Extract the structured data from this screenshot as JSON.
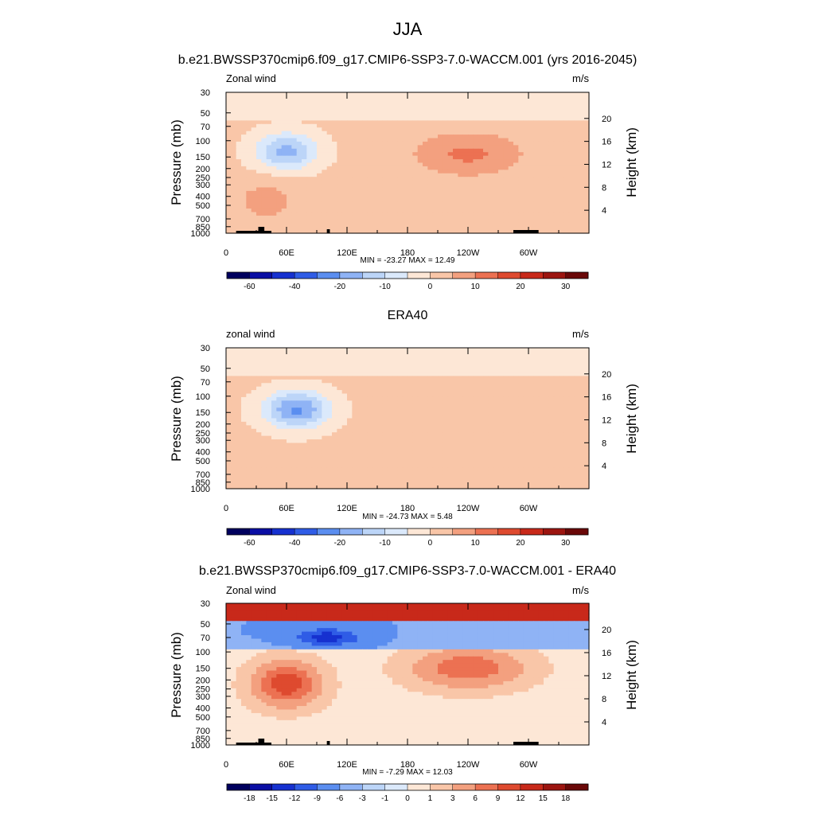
{
  "figure": {
    "title": "JJA",
    "colors": {
      "model_scale": [
        "#00005e",
        "#0a0ea4",
        "#1631d0",
        "#2f5ce6",
        "#5b8ef0",
        "#8fb3f5",
        "#bcd5f8",
        "#dbe9fb",
        "#fde7d6",
        "#f9c6a8",
        "#f3a07f",
        "#ec7152",
        "#de4a2f",
        "#c8291a",
        "#9c1510",
        "#6a0808"
      ],
      "diff_scale": [
        "#00005e",
        "#0a0ea4",
        "#1631d0",
        "#2f5ce6",
        "#5b8ef0",
        "#8fb3f5",
        "#bcd5f8",
        "#dbe9fb",
        "#fde7d6",
        "#f9c6a8",
        "#f3a07f",
        "#ec7152",
        "#de4a2f",
        "#c8291a",
        "#9c1510",
        "#6a0808"
      ]
    }
  },
  "chart_data": [
    {
      "type": "heatmap",
      "title": "b.e21.BWSSP370cmip6.f09_g17.CMIP6-SSP3-7.0-WACCM.001 (yrs 2016-2045)",
      "left_label": "Zonal wind",
      "right_label": "m/s",
      "ylabel": "Pressure (mb)",
      "y2label": "Height (km)",
      "yticks": [
        "30",
        "50",
        "70",
        "100",
        "150",
        "200",
        "250",
        "300",
        "400",
        "500",
        "700",
        "850",
        "1000"
      ],
      "ytick_values": [
        30,
        50,
        70,
        100,
        150,
        200,
        250,
        300,
        400,
        500,
        700,
        850,
        1000
      ],
      "y2ticks": [
        "20",
        "16",
        "12",
        "8",
        "4"
      ],
      "y2tick_values": [
        20,
        16,
        12,
        8,
        4
      ],
      "xticks": [
        "0",
        "60E",
        "120E",
        "180",
        "120W",
        "60W"
      ],
      "xtick_values": [
        0,
        60,
        120,
        180,
        240,
        300
      ],
      "xlim": [
        0,
        360
      ],
      "ylim": [
        1000,
        30
      ],
      "stats": "MIN = -23.27  MAX =  12.49",
      "colorbar_labels": [
        "-60",
        "-40",
        "-20",
        "-10",
        "0",
        "10",
        "20",
        "30"
      ],
      "colorbar_levels": [
        -70,
        -60,
        -50,
        -40,
        -30,
        -20,
        -15,
        -10,
        -5,
        0,
        5,
        10,
        15,
        20,
        25,
        30
      ],
      "topography": true,
      "features": [
        {
          "lon": 60,
          "p": 130,
          "value": -18,
          "sx": 30,
          "sy": 0.45
        },
        {
          "lon": 240,
          "p": 140,
          "value": 10,
          "sx": 55,
          "sy": 0.55
        },
        {
          "lon": 40,
          "p": 450,
          "value": 6,
          "sx": 35,
          "sy": 0.55
        }
      ]
    },
    {
      "type": "heatmap",
      "title": "ERA40",
      "left_label": "zonal wind",
      "right_label": "m/s",
      "ylabel": "Pressure (mb)",
      "y2label": "Height (km)",
      "yticks": [
        "30",
        "50",
        "70",
        "100",
        "150",
        "200",
        "250",
        "300",
        "400",
        "500",
        "700",
        "850",
        "1000"
      ],
      "ytick_values": [
        30,
        50,
        70,
        100,
        150,
        200,
        250,
        300,
        400,
        500,
        700,
        850,
        1000
      ],
      "y2ticks": [
        "20",
        "16",
        "12",
        "8",
        "4"
      ],
      "y2tick_values": [
        20,
        16,
        12,
        8,
        4
      ],
      "xticks": [
        "0",
        "60E",
        "120E",
        "180",
        "120W",
        "60W"
      ],
      "xtick_values": [
        0,
        60,
        120,
        180,
        240,
        300
      ],
      "xlim": [
        0,
        360
      ],
      "ylim": [
        1000,
        30
      ],
      "stats": "MIN = -24.73  MAX =   5.48",
      "colorbar_labels": [
        "-60",
        "-40",
        "-20",
        "-10",
        "0",
        "10",
        "20",
        "30"
      ],
      "colorbar_levels": [
        -70,
        -60,
        -50,
        -40,
        -30,
        -20,
        -15,
        -10,
        -5,
        0,
        5,
        10,
        15,
        20,
        25,
        30
      ],
      "topography": false,
      "features": [
        {
          "lon": 70,
          "p": 140,
          "value": -22,
          "sx": 32,
          "sy": 0.45
        },
        {
          "lon": 240,
          "p": 150,
          "value": 4,
          "sx": 60,
          "sy": 0.6
        }
      ]
    },
    {
      "type": "heatmap",
      "title": "b.e21.BWSSP370cmip6.f09_g17.CMIP6-SSP3-7.0-WACCM.001 - ERA40",
      "left_label": "Zonal wind",
      "right_label": "m/s",
      "ylabel": "Pressure (mb)",
      "y2label": "Height (km)",
      "yticks": [
        "30",
        "50",
        "70",
        "100",
        "150",
        "200",
        "250",
        "300",
        "400",
        "500",
        "700",
        "850",
        "1000"
      ],
      "ytick_values": [
        30,
        50,
        70,
        100,
        150,
        200,
        250,
        300,
        400,
        500,
        700,
        850,
        1000
      ],
      "y2ticks": [
        "20",
        "16",
        "12",
        "8",
        "4"
      ],
      "y2tick_values": [
        20,
        16,
        12,
        8,
        4
      ],
      "xticks": [
        "0",
        "60E",
        "120E",
        "180",
        "120W",
        "60W"
      ],
      "xtick_values": [
        0,
        60,
        120,
        180,
        240,
        300
      ],
      "xlim": [
        0,
        360
      ],
      "ylim": [
        1000,
        30
      ],
      "stats": "MIN =  -7.29  MAX =  12.03",
      "colorbar_labels": [
        "-18",
        "-15",
        "-12",
        "-9",
        "-6",
        "-3",
        "-1",
        "0",
        "1",
        "3",
        "6",
        "9",
        "12",
        "15",
        "18"
      ],
      "colorbar_levels": [
        -21,
        -18,
        -15,
        -12,
        -9,
        -6,
        -3,
        -1,
        0,
        1,
        3,
        6,
        9,
        12,
        15,
        18
      ],
      "topography": true,
      "features": [
        {
          "lon": 60,
          "p": 220,
          "value": 11,
          "sx": 30,
          "sy": 0.5
        },
        {
          "lon": 240,
          "p": 150,
          "value": 8,
          "sx": 50,
          "sy": 0.45
        },
        {
          "lon": 100,
          "p": 70,
          "value": -8,
          "sx": 30,
          "sy": 0.2
        }
      ]
    }
  ]
}
